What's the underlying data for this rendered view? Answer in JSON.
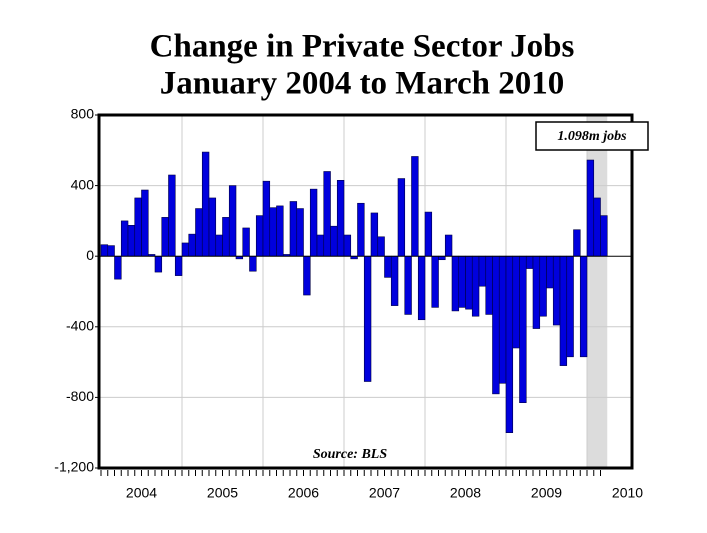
{
  "chart_data": {
    "type": "bar",
    "title": [
      "Change in Private Sector Jobs",
      "January 2004 to March 2010"
    ],
    "categories": [
      null,
      null,
      null,
      null,
      null,
      null,
      null,
      null,
      null,
      null,
      null,
      null,
      null,
      null,
      null,
      null,
      null,
      null,
      null,
      null,
      null,
      null,
      null,
      null,
      null,
      null,
      null,
      null,
      null,
      null,
      null,
      null,
      null,
      null,
      null,
      null,
      null,
      null,
      null,
      null,
      null,
      null,
      null,
      null,
      null,
      null,
      null,
      null,
      null,
      null,
      null,
      null,
      null,
      null,
      null,
      null,
      null,
      null,
      null,
      null,
      null,
      null,
      null,
      null,
      null,
      null,
      null,
      null,
      null,
      null,
      null,
      null,
      null,
      null,
      null
    ],
    "year_labels": [
      "2004",
      "2005",
      "2006",
      "2007",
      "2008",
      "2009",
      "2010"
    ],
    "values": [
      65,
      60,
      -130,
      200,
      175,
      330,
      375,
      10,
      -90,
      220,
      460,
      -110,
      75,
      125,
      270,
      590,
      330,
      120,
      220,
      400,
      -15,
      160,
      -85,
      230,
      425,
      275,
      285,
      10,
      310,
      270,
      -220,
      380,
      120,
      480,
      170,
      430,
      120,
      -15,
      300,
      -710,
      245,
      110,
      -120,
      -280,
      440,
      -330,
      565,
      -360,
      250,
      -290,
      -20,
      120,
      -310,
      -290,
      -300,
      -340,
      -170,
      -330,
      -780,
      -720,
      -1000,
      -520,
      -830,
      -70,
      -410,
      -340,
      -180,
      -390,
      -620,
      -570,
      150,
      -570,
      545,
      330,
      230
    ],
    "color": "#0000dd",
    "ylim": [
      -1200,
      800
    ],
    "yticks": [
      {
        "value": -1200,
        "label": "-1,200"
      },
      -800,
      -400,
      0,
      400,
      800
    ],
    "grid": true,
    "highlight": {
      "start": 72,
      "end": 74,
      "color": "#dcdcdc"
    },
    "annotation": "1.098m jobs",
    "source": "Source: BLS"
  }
}
